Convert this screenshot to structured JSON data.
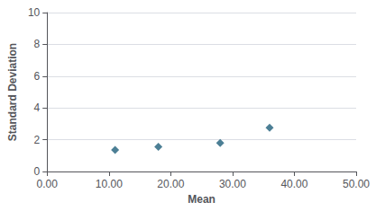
{
  "chart_data": {
    "type": "scatter",
    "x": [
      11.0,
      18.0,
      28.0,
      36.0
    ],
    "values": [
      1.35,
      1.55,
      1.8,
      2.75
    ],
    "xlabel": "Mean",
    "ylabel": "Standard Deviation",
    "xlim": [
      0.0,
      50.0
    ],
    "ylim": [
      0,
      10
    ],
    "xticks": [
      {
        "value": 0,
        "label": "0.00"
      },
      {
        "value": 10,
        "label": "10.00"
      },
      {
        "value": 20,
        "label": "20.00"
      },
      {
        "value": 30,
        "label": "30.00"
      },
      {
        "value": 40,
        "label": "40.00"
      },
      {
        "value": 50,
        "label": "50.00"
      }
    ],
    "yticks": [
      0,
      2,
      4,
      6,
      8,
      10
    ],
    "color": "#1F5F7A",
    "marker": "diamond",
    "grid": "y"
  }
}
